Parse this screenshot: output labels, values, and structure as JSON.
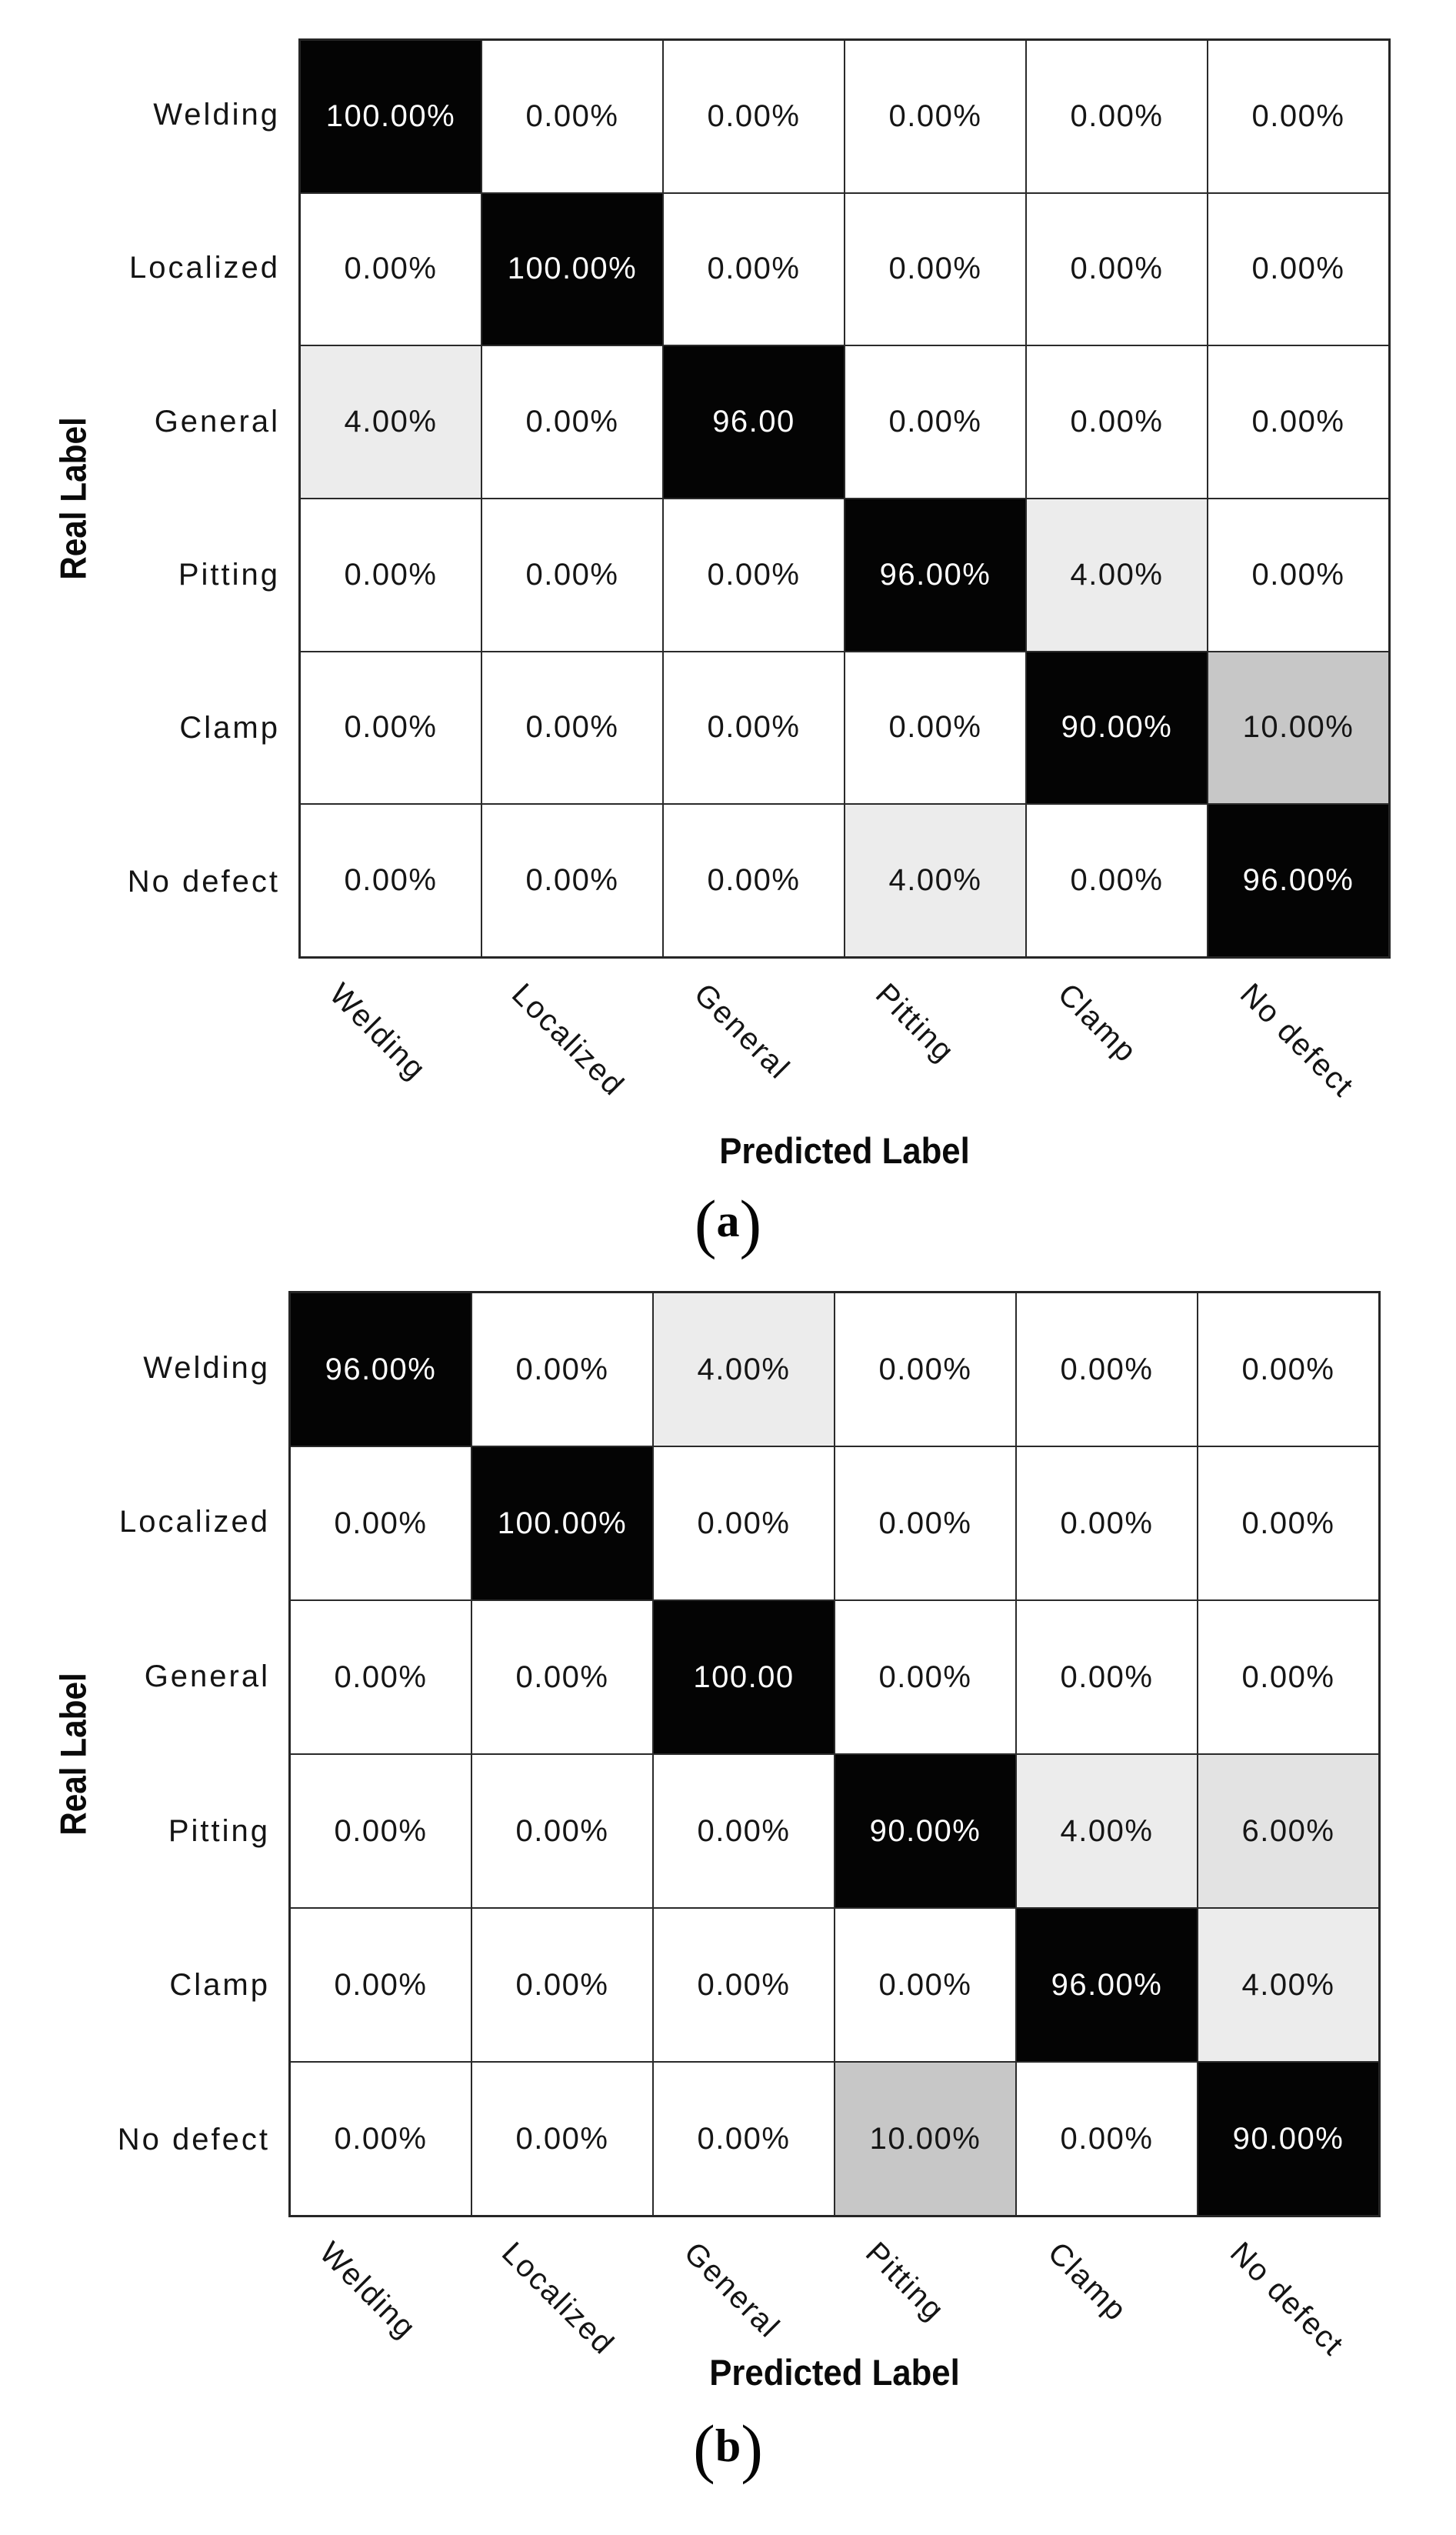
{
  "page": {
    "background": "#ffffff"
  },
  "style": {
    "grid_line_color": "#262626",
    "high_threshold": 50,
    "high_bg": "#040404",
    "high_text": "#ffffff",
    "low_text": "#151515",
    "shades": {
      "0": "#ffffff",
      "4": "#ececec",
      "6": "#e3e3e3",
      "10": "#c7c7c7"
    }
  },
  "figures": [
    {
      "caption": "(a)",
      "x_axis_title": "Predicted Label",
      "y_axis_title": "Real Label",
      "row_labels": [
        "Welding",
        "Localized",
        "General",
        "Pitting",
        "Clamp",
        "No defect"
      ],
      "col_labels": [
        "Welding",
        "Localized",
        "General",
        "Pitting",
        "Clamp",
        "No defect"
      ],
      "cells": [
        [
          "100.00%",
          "0.00%",
          "0.00%",
          "0.00%",
          "0.00%",
          "0.00%"
        ],
        [
          "0.00%",
          "100.00%",
          "0.00%",
          "0.00%",
          "0.00%",
          "0.00%"
        ],
        [
          "4.00%",
          "0.00%",
          "96.00",
          "0.00%",
          "0.00%",
          "0.00%"
        ],
        [
          "0.00%",
          "0.00%",
          "0.00%",
          "96.00%",
          "4.00%",
          "0.00%"
        ],
        [
          "0.00%",
          "0.00%",
          "0.00%",
          "0.00%",
          "90.00%",
          "10.00%"
        ],
        [
          "0.00%",
          "0.00%",
          "0.00%",
          "4.00%",
          "0.00%",
          "96.00%"
        ]
      ]
    },
    {
      "caption": "(b)",
      "x_axis_title": "Predicted Label",
      "y_axis_title": "Real Label",
      "row_labels": [
        "Welding",
        "Localized",
        "General",
        "Pitting",
        "Clamp",
        "No defect"
      ],
      "col_labels": [
        "Welding",
        "Localized",
        "General",
        "Pitting",
        "Clamp",
        "No defect"
      ],
      "cells": [
        [
          "96.00%",
          "0.00%",
          "4.00%",
          "0.00%",
          "0.00%",
          "0.00%"
        ],
        [
          "0.00%",
          "100.00%",
          "0.00%",
          "0.00%",
          "0.00%",
          "0.00%"
        ],
        [
          "0.00%",
          "0.00%",
          "100.00",
          "0.00%",
          "0.00%",
          "0.00%"
        ],
        [
          "0.00%",
          "0.00%",
          "0.00%",
          "90.00%",
          "4.00%",
          "6.00%"
        ],
        [
          "0.00%",
          "0.00%",
          "0.00%",
          "0.00%",
          "96.00%",
          "4.00%"
        ],
        [
          "0.00%",
          "0.00%",
          "0.00%",
          "10.00%",
          "0.00%",
          "90.00%"
        ]
      ]
    }
  ],
  "chart_data": [
    {
      "type": "heatmap",
      "title": "(a)",
      "xlabel": "Predicted Label",
      "ylabel": "Real Label",
      "x_categories": [
        "Welding",
        "Localized",
        "General",
        "Pitting",
        "Clamp",
        "No defect"
      ],
      "y_categories": [
        "Welding",
        "Localized",
        "General",
        "Pitting",
        "Clamp",
        "No defect"
      ],
      "unit": "%",
      "values": [
        [
          100,
          0,
          0,
          0,
          0,
          0
        ],
        [
          0,
          100,
          0,
          0,
          0,
          0
        ],
        [
          4,
          0,
          96,
          0,
          0,
          0
        ],
        [
          0,
          0,
          0,
          96,
          4,
          0
        ],
        [
          0,
          0,
          0,
          0,
          90,
          10
        ],
        [
          0,
          0,
          0,
          4,
          0,
          96
        ]
      ],
      "colormap": "white-to-black grayscale",
      "grid": true,
      "legend": false
    },
    {
      "type": "heatmap",
      "title": "(b)",
      "xlabel": "Predicted Label",
      "ylabel": "Real Label",
      "x_categories": [
        "Welding",
        "Localized",
        "General",
        "Pitting",
        "Clamp",
        "No defect"
      ],
      "y_categories": [
        "Welding",
        "Localized",
        "General",
        "Pitting",
        "Clamp",
        "No defect"
      ],
      "unit": "%",
      "values": [
        [
          96,
          0,
          4,
          0,
          0,
          0
        ],
        [
          0,
          100,
          0,
          0,
          0,
          0
        ],
        [
          0,
          0,
          100,
          0,
          0,
          0
        ],
        [
          0,
          0,
          0,
          90,
          4,
          6
        ],
        [
          0,
          0,
          0,
          0,
          96,
          4
        ],
        [
          0,
          0,
          0,
          10,
          0,
          90
        ]
      ],
      "colormap": "white-to-black grayscale",
      "grid": true,
      "legend": false
    }
  ]
}
